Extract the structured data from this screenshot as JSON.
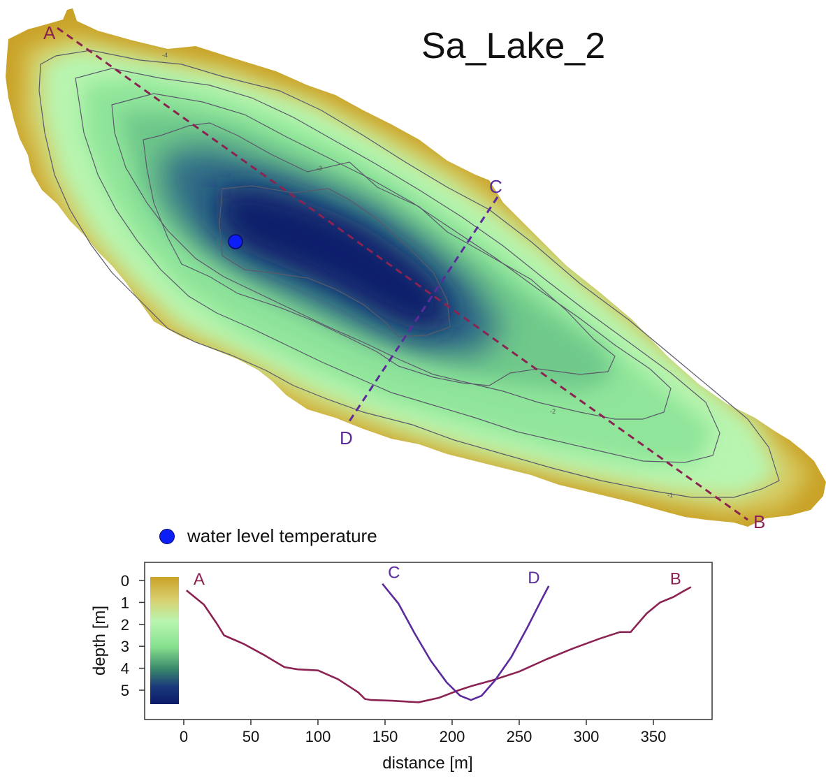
{
  "map": {
    "title": "Sa_Lake_2",
    "transects": [
      {
        "start": "A",
        "end": "B",
        "color": "#8b2252"
      },
      {
        "start": "C",
        "end": "D",
        "color": "#5b2a9c"
      }
    ],
    "contour_labels": [
      "-4",
      "-3",
      "-2",
      "-1"
    ],
    "colors": {
      "shore": "#c9a227",
      "shallow": "#b8f5b0",
      "mid": "#86e08e",
      "deep": "#0d1a6b",
      "contour": "#555566"
    }
  },
  "legend": {
    "marker_label": "water level temperature",
    "marker_color": "#0a1ef5"
  },
  "chart_data": {
    "type": "line",
    "xlabel": "distance [m]",
    "ylabel": "depth [m]",
    "xlim": [
      -25,
      390
    ],
    "ylim": [
      0,
      6
    ],
    "x_ticks": [
      0,
      50,
      100,
      150,
      200,
      250,
      300,
      350
    ],
    "y_ticks": [
      0,
      1,
      2,
      3,
      4,
      5
    ],
    "colorbar": [
      "#c9a227",
      "#d8d070",
      "#b8f5b0",
      "#86e08e",
      "#3a8a6a",
      "#1a3a7a",
      "#0d1a6b"
    ],
    "series": [
      {
        "start_label": "A",
        "end_label": "B",
        "color": "#8b2252",
        "x": [
          2,
          15,
          25,
          30,
          45,
          60,
          75,
          85,
          100,
          115,
          130,
          135,
          140,
          155,
          175,
          190,
          205,
          215,
          230,
          250,
          270,
          290,
          310,
          325,
          333,
          345,
          355,
          365,
          372,
          378
        ],
        "y": [
          0.45,
          1.1,
          2.0,
          2.5,
          2.9,
          3.4,
          3.95,
          4.05,
          4.1,
          4.5,
          5.1,
          5.4,
          5.45,
          5.48,
          5.55,
          5.35,
          5.0,
          4.8,
          4.55,
          4.15,
          3.6,
          3.1,
          2.65,
          2.35,
          2.35,
          1.5,
          1.0,
          0.75,
          0.5,
          0.3
        ]
      },
      {
        "start_label": "C",
        "end_label": "D",
        "color": "#5b2a9c",
        "x": [
          148,
          160,
          172,
          184,
          196,
          206,
          214,
          222,
          232,
          244,
          256,
          266,
          272
        ],
        "y": [
          0.15,
          1.05,
          2.4,
          3.65,
          4.65,
          5.25,
          5.45,
          5.25,
          4.55,
          3.5,
          2.15,
          0.95,
          0.25
        ]
      }
    ]
  }
}
